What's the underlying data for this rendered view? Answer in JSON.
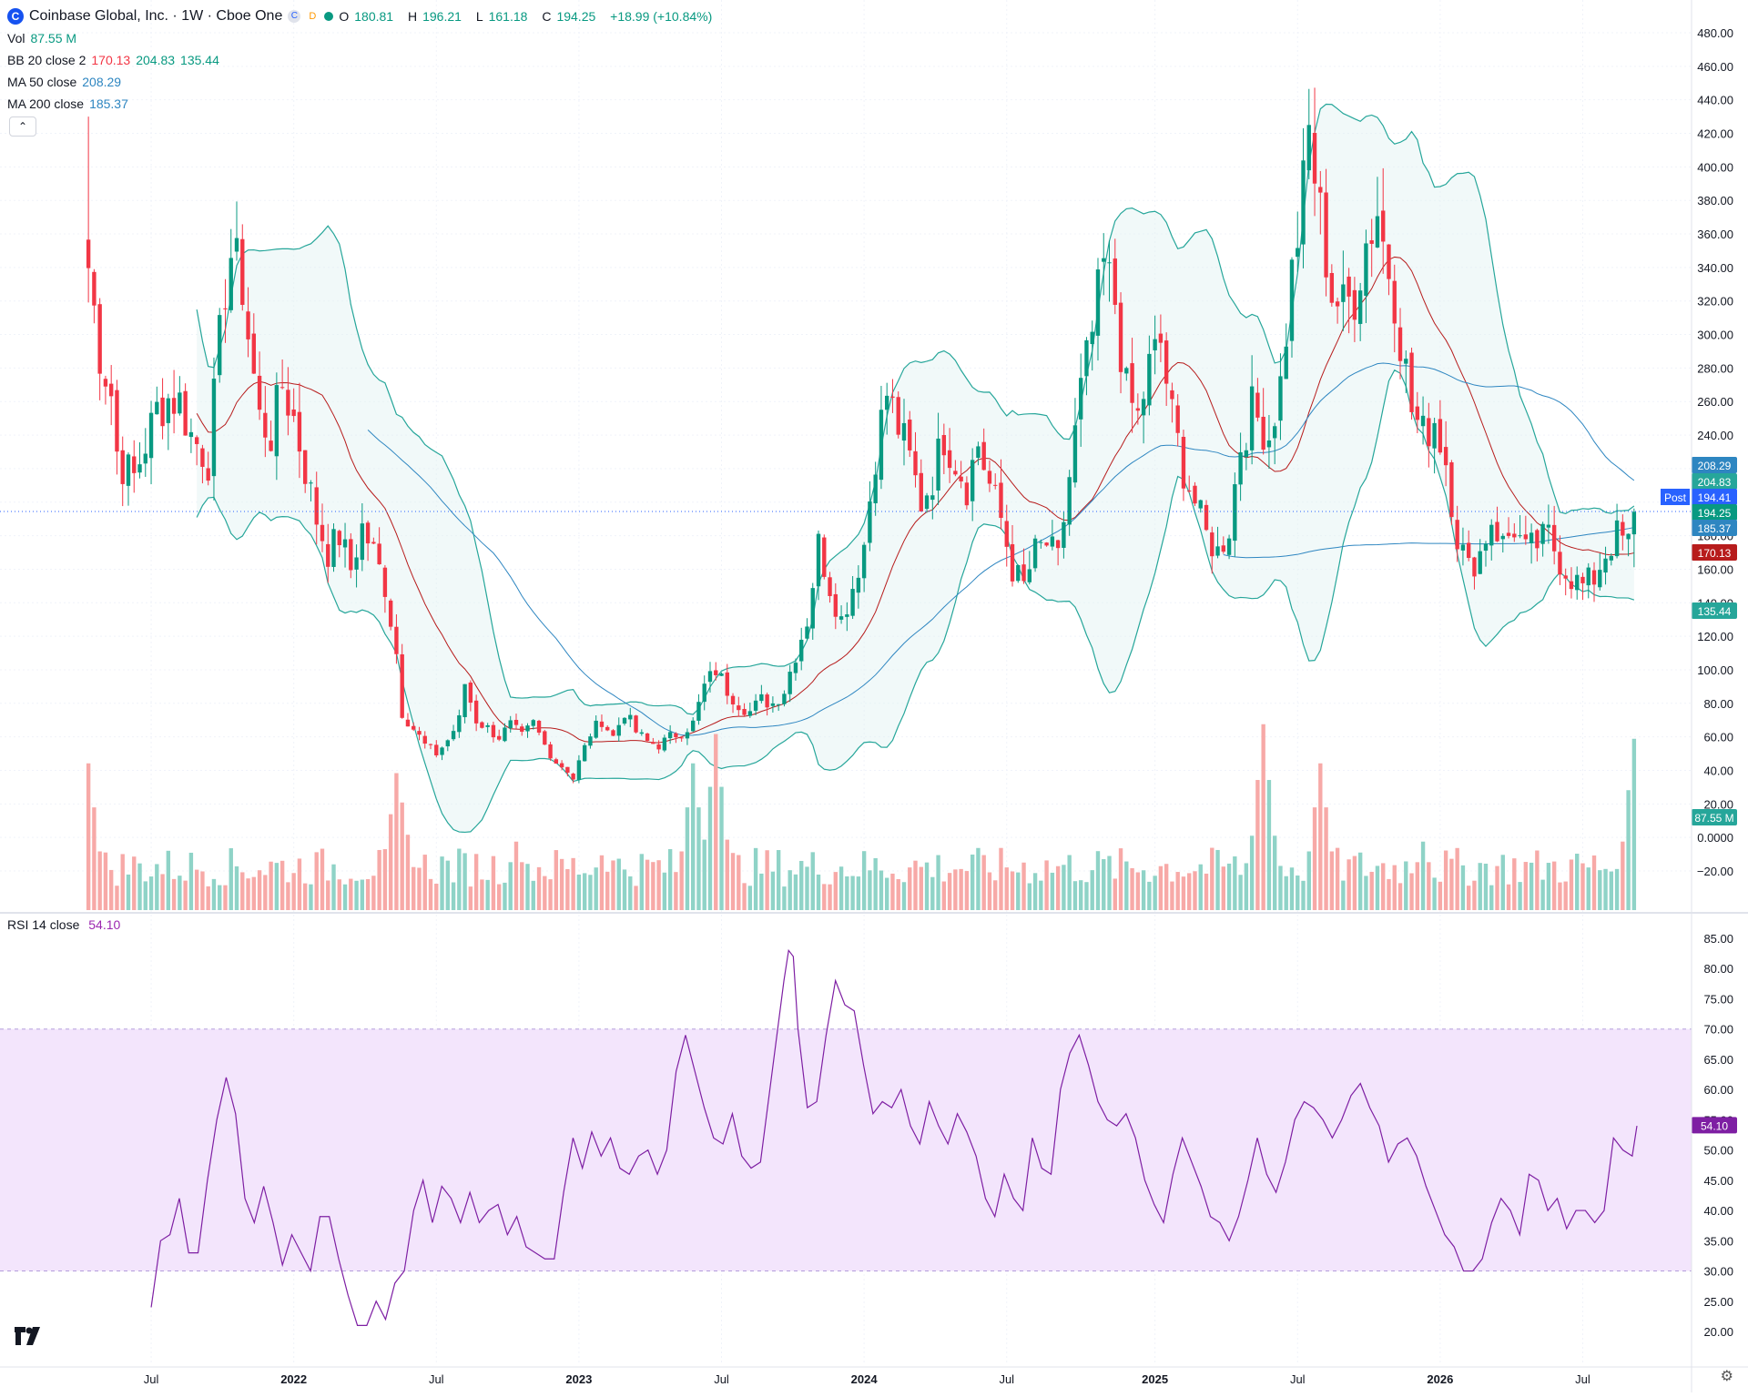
{
  "header": {
    "title": "Coinbase Global, Inc. · 1W · Cboe One",
    "logo_letter": "C",
    "chip_c": "C",
    "chip_d": "D",
    "o_label": "O",
    "o_value": "180.81",
    "h_label": "H",
    "h_value": "196.21",
    "l_label": "L",
    "l_value": "161.18",
    "c_label": "C",
    "c_value": "194.25",
    "change": "+18.99 (+10.84%)"
  },
  "indicators": {
    "vol_label": "Vol",
    "vol_value": "87.55 M",
    "bb_label": "BB 20 close 2",
    "bb_mid": "170.13",
    "bb_upper": "204.83",
    "bb_lower": "135.44",
    "ma50_label": "MA 50 close",
    "ma50_value": "208.29",
    "ma200_label": "MA 200 close",
    "ma200_value": "185.37",
    "rsi_label": "RSI 14 close",
    "rsi_value": "54.10",
    "collapse_icon": "chevron-up-icon"
  },
  "price_badges": {
    "post_label": "Post",
    "post_value": "194.41",
    "close": "194.25",
    "ma50": "208.29",
    "bb_upper": "204.83",
    "ma200": "185.37",
    "bb_mid": "170.13",
    "bb_lower": "135.44",
    "volume": "87.55 M",
    "rsi": "54.10"
  },
  "colors": {
    "up": "#089981",
    "down": "#f23645",
    "band": "#26a69a",
    "bb_basis": "#b71c1c",
    "ma200": "#2e86c1",
    "rsi": "#7e1fa3",
    "rsi_band": "#f3e5fc",
    "post": "#2962ff"
  },
  "chart_data": {
    "type": "candlestick",
    "interval": "1W",
    "price_axis": {
      "ylim": [
        -30,
        490
      ],
      "ticks": [
        "480.00",
        "460.00",
        "440.00",
        "420.00",
        "400.00",
        "380.00",
        "360.00",
        "340.00",
        "320.00",
        "300.00",
        "280.00",
        "260.00",
        "240.00",
        "220.00",
        "200.00",
        "180.00",
        "160.00",
        "140.00",
        "120.00",
        "100.00",
        "80.00",
        "60.00",
        "40.00",
        "20.00",
        "0.0000",
        "−20.00"
      ]
    },
    "x_axis": {
      "tick_labels": [
        "Jul",
        "2022",
        "Jul",
        "2023",
        "Jul",
        "2024",
        "Jul",
        "2025",
        "Jul",
        "2026",
        "Jul"
      ],
      "tick_weeks": [
        11,
        36,
        61,
        86,
        111,
        136,
        161,
        187,
        212,
        237,
        262
      ]
    },
    "ohlc_series": {
      "description_of_fields": "per-week arrays, index 0 = first week",
      "close_anchors": [
        [
          0,
          340
        ],
        [
          2,
          290
        ],
        [
          4,
          265
        ],
        [
          5,
          230
        ],
        [
          6,
          222
        ],
        [
          8,
          215
        ],
        [
          10,
          235
        ],
        [
          12,
          255
        ],
        [
          14,
          262
        ],
        [
          16,
          260
        ],
        [
          18,
          240
        ],
        [
          21,
          225
        ],
        [
          24,
          330
        ],
        [
          25,
          348
        ],
        [
          27,
          330
        ],
        [
          28,
          300
        ],
        [
          30,
          250
        ],
        [
          32,
          240
        ],
        [
          34,
          270
        ],
        [
          36,
          250
        ],
        [
          38,
          220
        ],
        [
          40,
          190
        ],
        [
          42,
          170
        ],
        [
          44,
          180
        ],
        [
          46,
          160
        ],
        [
          48,
          185
        ],
        [
          50,
          170
        ],
        [
          52,
          150
        ],
        [
          54,
          110
        ],
        [
          55,
          75
        ],
        [
          57,
          65
        ],
        [
          59,
          55
        ],
        [
          61,
          50
        ],
        [
          63,
          58
        ],
        [
          65,
          70
        ],
        [
          66,
          92
        ],
        [
          68,
          70
        ],
        [
          70,
          65
        ],
        [
          72,
          60
        ],
        [
          74,
          67
        ],
        [
          76,
          60
        ],
        [
          78,
          68
        ],
        [
          80,
          55
        ],
        [
          82,
          45
        ],
        [
          84,
          40
        ],
        [
          85,
          35
        ],
        [
          86,
          45
        ],
        [
          88,
          62
        ],
        [
          90,
          70
        ],
        [
          92,
          60
        ],
        [
          94,
          75
        ],
        [
          96,
          63
        ],
        [
          98,
          57
        ],
        [
          100,
          55
        ],
        [
          102,
          60
        ],
        [
          104,
          63
        ],
        [
          106,
          68
        ],
        [
          108,
          90
        ],
        [
          110,
          100
        ],
        [
          112,
          88
        ],
        [
          114,
          80
        ],
        [
          116,
          75
        ],
        [
          118,
          82
        ],
        [
          120,
          80
        ],
        [
          122,
          88
        ],
        [
          124,
          110
        ],
        [
          126,
          130
        ],
        [
          128,
          175
        ],
        [
          130,
          150
        ],
        [
          132,
          130
        ],
        [
          134,
          150
        ],
        [
          136,
          175
        ],
        [
          138,
          230
        ],
        [
          140,
          265
        ],
        [
          142,
          245
        ],
        [
          144,
          225
        ],
        [
          146,
          200
        ],
        [
          148,
          215
        ],
        [
          150,
          240
        ],
        [
          152,
          225
        ],
        [
          154,
          210
        ],
        [
          156,
          235
        ],
        [
          158,
          210
        ],
        [
          160,
          190
        ],
        [
          162,
          160
        ],
        [
          164,
          150
        ],
        [
          166,
          170
        ],
        [
          168,
          175
        ],
        [
          170,
          165
        ],
        [
          172,
          215
        ],
        [
          174,
          265
        ],
        [
          176,
          300
        ],
        [
          178,
          340
        ],
        [
          180,
          320
        ],
        [
          182,
          265
        ],
        [
          184,
          250
        ],
        [
          186,
          280
        ],
        [
          188,
          295
        ],
        [
          190,
          250
        ],
        [
          192,
          220
        ],
        [
          194,
          200
        ],
        [
          196,
          180
        ],
        [
          198,
          170
        ],
        [
          200,
          185
        ],
        [
          202,
          235
        ],
        [
          204,
          255
        ],
        [
          206,
          245
        ],
        [
          207,
          240
        ],
        [
          209,
          270
        ],
        [
          211,
          335
        ],
        [
          213,
          385
        ],
        [
          214,
          420
        ],
        [
          216,
          370
        ],
        [
          218,
          325
        ],
        [
          220,
          315
        ],
        [
          222,
          325
        ],
        [
          224,
          355
        ],
        [
          226,
          375
        ],
        [
          227,
          355
        ],
        [
          228,
          340
        ],
        [
          229,
          325
        ],
        [
          230,
          300
        ],
        [
          232,
          255
        ],
        [
          234,
          240
        ],
        [
          236,
          250
        ],
        [
          238,
          225
        ],
        [
          240,
          180
        ],
        [
          242,
          160
        ],
        [
          244,
          170
        ],
        [
          246,
          190
        ],
        [
          248,
          175
        ],
        [
          250,
          185
        ],
        [
          252,
          170
        ],
        [
          254,
          175
        ],
        [
          256,
          180
        ],
        [
          258,
          165
        ],
        [
          260,
          155
        ],
        [
          262,
          150
        ],
        [
          264,
          155
        ],
        [
          266,
          170
        ],
        [
          268,
          180
        ],
        [
          270,
          175
        ],
        [
          271,
          194
        ]
      ],
      "last": {
        "open": 180.81,
        "high": 196.21,
        "low": 161.18,
        "close": 194.25
      }
    },
    "volume_peaks": [
      [
        0,
        75
      ],
      [
        54,
        70
      ],
      [
        55,
        55
      ],
      [
        75,
        35
      ],
      [
        89,
        20
      ],
      [
        90,
        28
      ],
      [
        106,
        75
      ],
      [
        110,
        90
      ],
      [
        206,
        95
      ],
      [
        216,
        75
      ],
      [
        234,
        35
      ],
      [
        269,
        30
      ],
      [
        271,
        87.55
      ]
    ],
    "rsi": {
      "ylim": [
        17,
        88
      ],
      "ticks": [
        "85.00",
        "80.00",
        "75.00",
        "70.00",
        "65.00",
        "60.00",
        "55.00",
        "50.00",
        "45.00",
        "40.00",
        "35.00",
        "30.00",
        "25.00",
        "20.00"
      ],
      "band": [
        30,
        70
      ],
      "points": [
        [
          14,
          24
        ],
        [
          16,
          35
        ],
        [
          18,
          36
        ],
        [
          20,
          42
        ],
        [
          22,
          33
        ],
        [
          24,
          33
        ],
        [
          26,
          45
        ],
        [
          28,
          55
        ],
        [
          30,
          62
        ],
        [
          32,
          56
        ],
        [
          34,
          42
        ],
        [
          36,
          38
        ],
        [
          38,
          44
        ],
        [
          40,
          38
        ],
        [
          42,
          31
        ],
        [
          44,
          36
        ],
        [
          46,
          33
        ],
        [
          48,
          30
        ],
        [
          50,
          39
        ],
        [
          52,
          39
        ],
        [
          54,
          32
        ],
        [
          56,
          26
        ],
        [
          58,
          21
        ],
        [
          60,
          21
        ],
        [
          62,
          25
        ],
        [
          64,
          22
        ],
        [
          66,
          28
        ],
        [
          68,
          30
        ],
        [
          70,
          40
        ],
        [
          72,
          45
        ],
        [
          74,
          38
        ],
        [
          76,
          44
        ],
        [
          78,
          42
        ],
        [
          80,
          38
        ],
        [
          82,
          43
        ],
        [
          84,
          38
        ],
        [
          86,
          40
        ],
        [
          88,
          41
        ],
        [
          90,
          36
        ],
        [
          92,
          39
        ],
        [
          94,
          34
        ],
        [
          96,
          33
        ],
        [
          98,
          32
        ],
        [
          100,
          32
        ],
        [
          102,
          43
        ],
        [
          104,
          52
        ],
        [
          106,
          47
        ],
        [
          108,
          53
        ],
        [
          110,
          49
        ],
        [
          112,
          52
        ],
        [
          114,
          47
        ],
        [
          116,
          46
        ],
        [
          118,
          49
        ],
        [
          120,
          50
        ],
        [
          122,
          46
        ],
        [
          124,
          50
        ],
        [
          126,
          63
        ],
        [
          128,
          69
        ],
        [
          130,
          63
        ],
        [
          132,
          57
        ],
        [
          134,
          52
        ],
        [
          136,
          51
        ],
        [
          138,
          56
        ],
        [
          140,
          49
        ],
        [
          142,
          47
        ],
        [
          144,
          48
        ],
        [
          146,
          60
        ],
        [
          148,
          72
        ],
        [
          149,
          78
        ],
        [
          150,
          83
        ],
        [
          151,
          82
        ],
        [
          152,
          70
        ],
        [
          154,
          57
        ],
        [
          156,
          58
        ],
        [
          158,
          69
        ],
        [
          160,
          78
        ],
        [
          162,
          74
        ],
        [
          164,
          73
        ],
        [
          166,
          64
        ],
        [
          168,
          56
        ],
        [
          170,
          58
        ],
        [
          172,
          57
        ],
        [
          174,
          60
        ],
        [
          176,
          54
        ],
        [
          178,
          51
        ],
        [
          180,
          58
        ],
        [
          182,
          54
        ],
        [
          184,
          51
        ],
        [
          186,
          56
        ],
        [
          188,
          53
        ],
        [
          190,
          49
        ],
        [
          192,
          42
        ],
        [
          194,
          39
        ],
        [
          196,
          46
        ],
        [
          198,
          42
        ],
        [
          200,
          40
        ],
        [
          202,
          52
        ],
        [
          204,
          47
        ],
        [
          206,
          46
        ],
        [
          208,
          60
        ],
        [
          210,
          66
        ],
        [
          212,
          69
        ],
        [
          214,
          64
        ],
        [
          216,
          58
        ],
        [
          218,
          55
        ],
        [
          220,
          54
        ],
        [
          222,
          56
        ],
        [
          224,
          52
        ],
        [
          226,
          45
        ],
        [
          228,
          41
        ],
        [
          230,
          38
        ],
        [
          232,
          46
        ],
        [
          234,
          52
        ],
        [
          236,
          48
        ],
        [
          238,
          44
        ],
        [
          240,
          39
        ],
        [
          242,
          38
        ],
        [
          244,
          35
        ],
        [
          246,
          39
        ],
        [
          248,
          45
        ],
        [
          250,
          52
        ],
        [
          252,
          46
        ],
        [
          254,
          43
        ],
        [
          256,
          48
        ],
        [
          258,
          55
        ],
        [
          260,
          58
        ],
        [
          262,
          57
        ],
        [
          264,
          55
        ],
        [
          266,
          52
        ],
        [
          268,
          55
        ],
        [
          270,
          59
        ],
        [
          272,
          61
        ],
        [
          274,
          57
        ],
        [
          276,
          54
        ],
        [
          278,
          48
        ],
        [
          280,
          51
        ],
        [
          282,
          52
        ],
        [
          284,
          49
        ],
        [
          286,
          44
        ],
        [
          288,
          40
        ],
        [
          290,
          36
        ],
        [
          292,
          34
        ],
        [
          294,
          30
        ],
        [
          296,
          30
        ],
        [
          298,
          32
        ],
        [
          300,
          38
        ],
        [
          302,
          42
        ],
        [
          304,
          40
        ],
        [
          306,
          36
        ],
        [
          308,
          46
        ],
        [
          310,
          45
        ],
        [
          312,
          40
        ],
        [
          314,
          42
        ],
        [
          316,
          37
        ],
        [
          318,
          40
        ],
        [
          320,
          40
        ],
        [
          322,
          38
        ],
        [
          324,
          40
        ],
        [
          326,
          52
        ],
        [
          328,
          50
        ],
        [
          330,
          49
        ],
        [
          331,
          54
        ]
      ]
    }
  }
}
